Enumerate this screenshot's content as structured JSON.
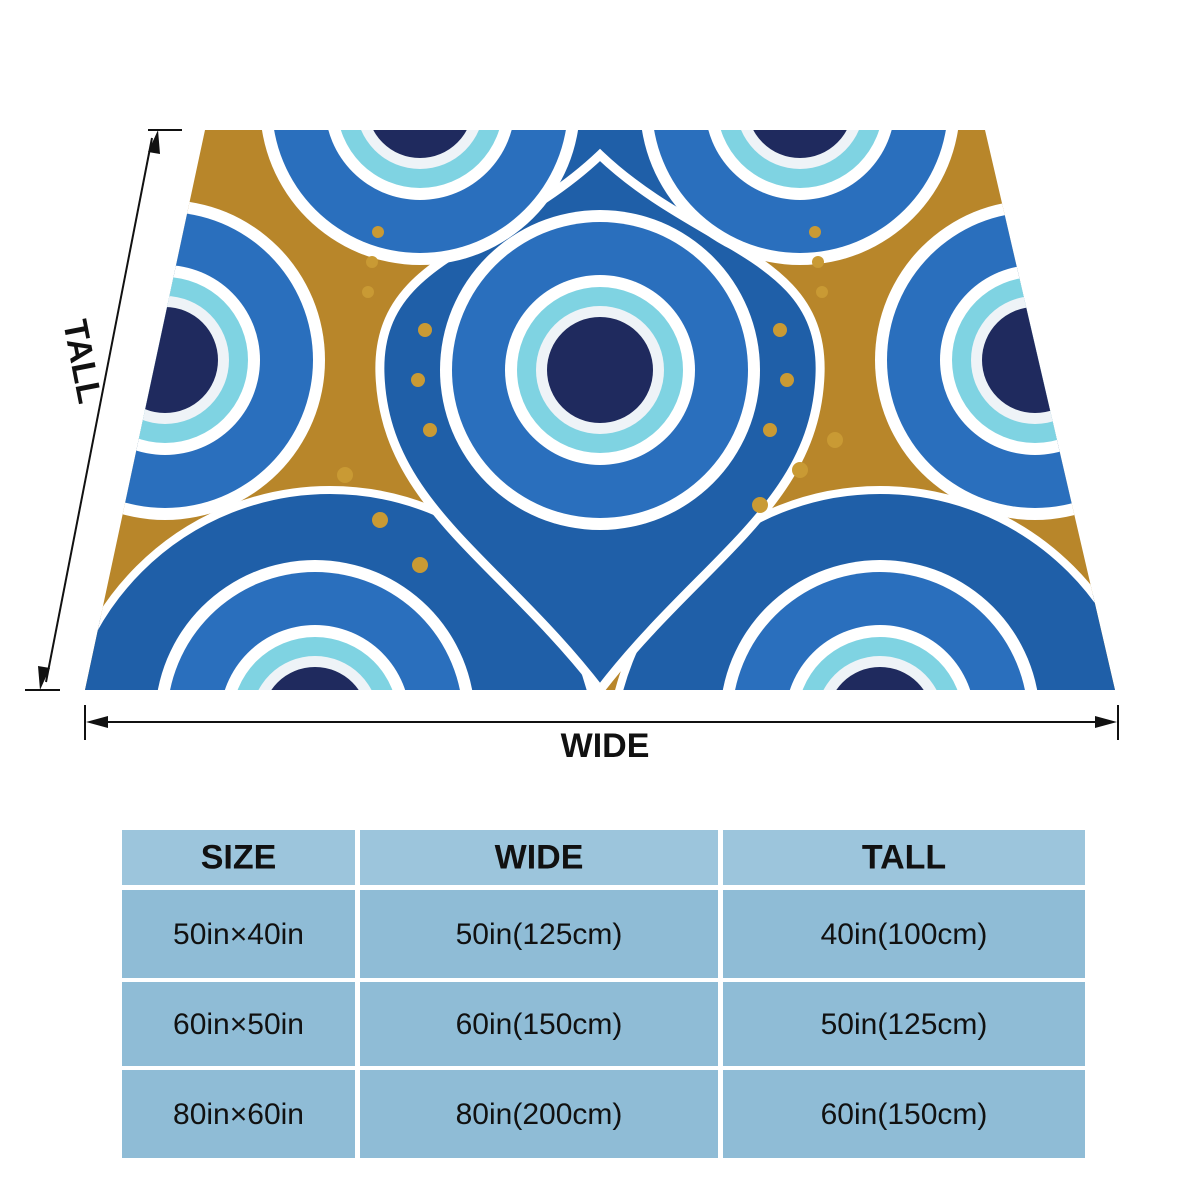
{
  "labels": {
    "tall": "TALL",
    "wide": "WIDE"
  },
  "table": {
    "header": [
      "SIZE",
      "WIDE",
      "TALL"
    ],
    "rows": [
      [
        "50in×40in",
        "50in(125cm)",
        "40in(100cm)"
      ],
      [
        "60in×50in",
        "60in(150cm)",
        "50in(125cm)"
      ],
      [
        "80in×60in",
        "80in(200cm)",
        "60in(150cm)"
      ]
    ]
  }
}
